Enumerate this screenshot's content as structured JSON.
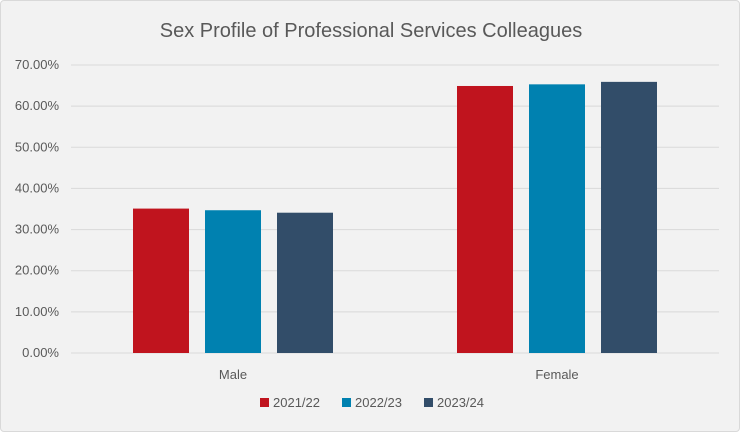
{
  "chart_data": {
    "type": "bar",
    "title": "Sex Profile of Professional Services Colleagues",
    "categories": [
      "Male",
      "Female"
    ],
    "series": [
      {
        "name": "2021/22",
        "color": "#c0141e",
        "values": [
          35.1,
          64.9
        ]
      },
      {
        "name": "2022/23",
        "color": "#0081b0",
        "values": [
          34.7,
          65.3
        ]
      },
      {
        "name": "2023/24",
        "color": "#324d69",
        "values": [
          34.1,
          65.9
        ]
      }
    ],
    "ylim": [
      0,
      70
    ],
    "yticks": [
      0,
      10,
      20,
      30,
      40,
      50,
      60,
      70
    ],
    "ytick_labels": [
      "0.00%",
      "10.00%",
      "20.00%",
      "30.00%",
      "40.00%",
      "50.00%",
      "60.00%",
      "70.00%"
    ],
    "grid": true,
    "legend_position": "bottom",
    "xlabel": "",
    "ylabel": ""
  }
}
